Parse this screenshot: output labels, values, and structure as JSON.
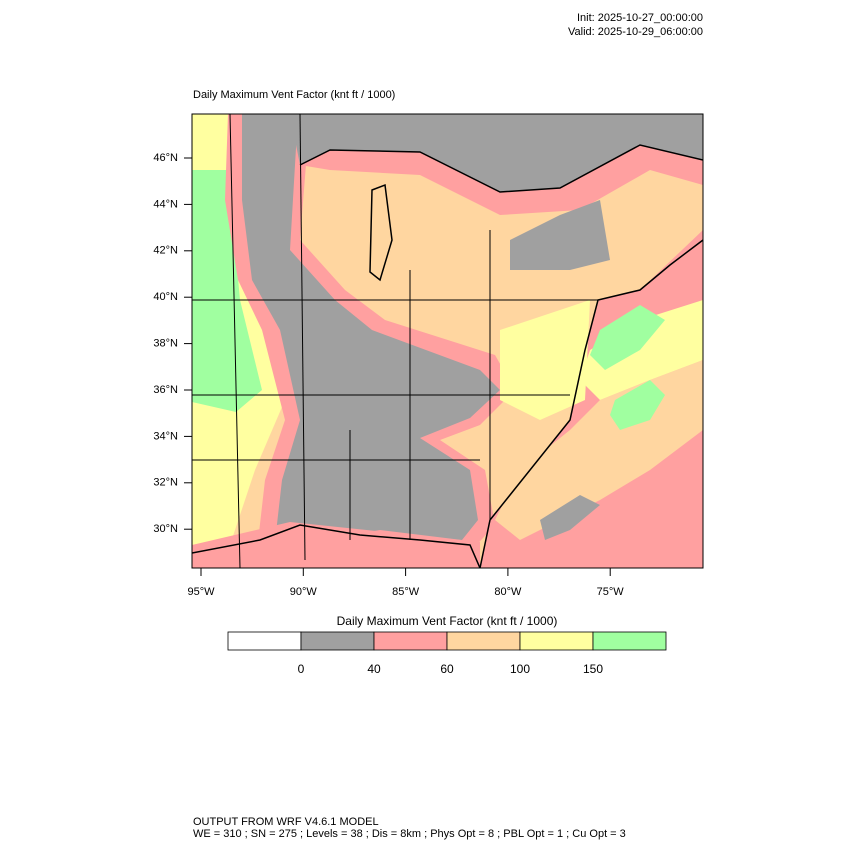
{
  "header": {
    "init": "Init: 2025-10-27_00:00:00",
    "valid": "Valid: 2025-10-29_06:00:00"
  },
  "map": {
    "title": "Daily Maximum Vent Factor   (knt ft / 1000)",
    "lat_labels": [
      "46°N",
      "44°N",
      "42°N",
      "40°N",
      "38°N",
      "36°N",
      "34°N",
      "32°N",
      "30°N"
    ],
    "lon_labels": [
      "95°W",
      "90°W",
      "85°W",
      "80°W",
      "75°W"
    ]
  },
  "colorbar": {
    "title": "Daily Maximum Vent Factor  (knt ft / 1000)",
    "colors": [
      "#ffffff",
      "#a0a0a0",
      "#ffa0a0",
      "#ffd6a0",
      "#ffffa0",
      "#a0ffa0"
    ],
    "ticks": [
      0,
      40,
      60,
      100,
      150
    ]
  },
  "footer": {
    "line1": "OUTPUT FROM WRF V4.6.1 MODEL",
    "line2": "WE = 310 ; SN = 275 ; Levels = 38 ; Dis = 8km ; Phys Opt = 8 ; PBL Opt = 1 ; Cu Opt = 3"
  }
}
